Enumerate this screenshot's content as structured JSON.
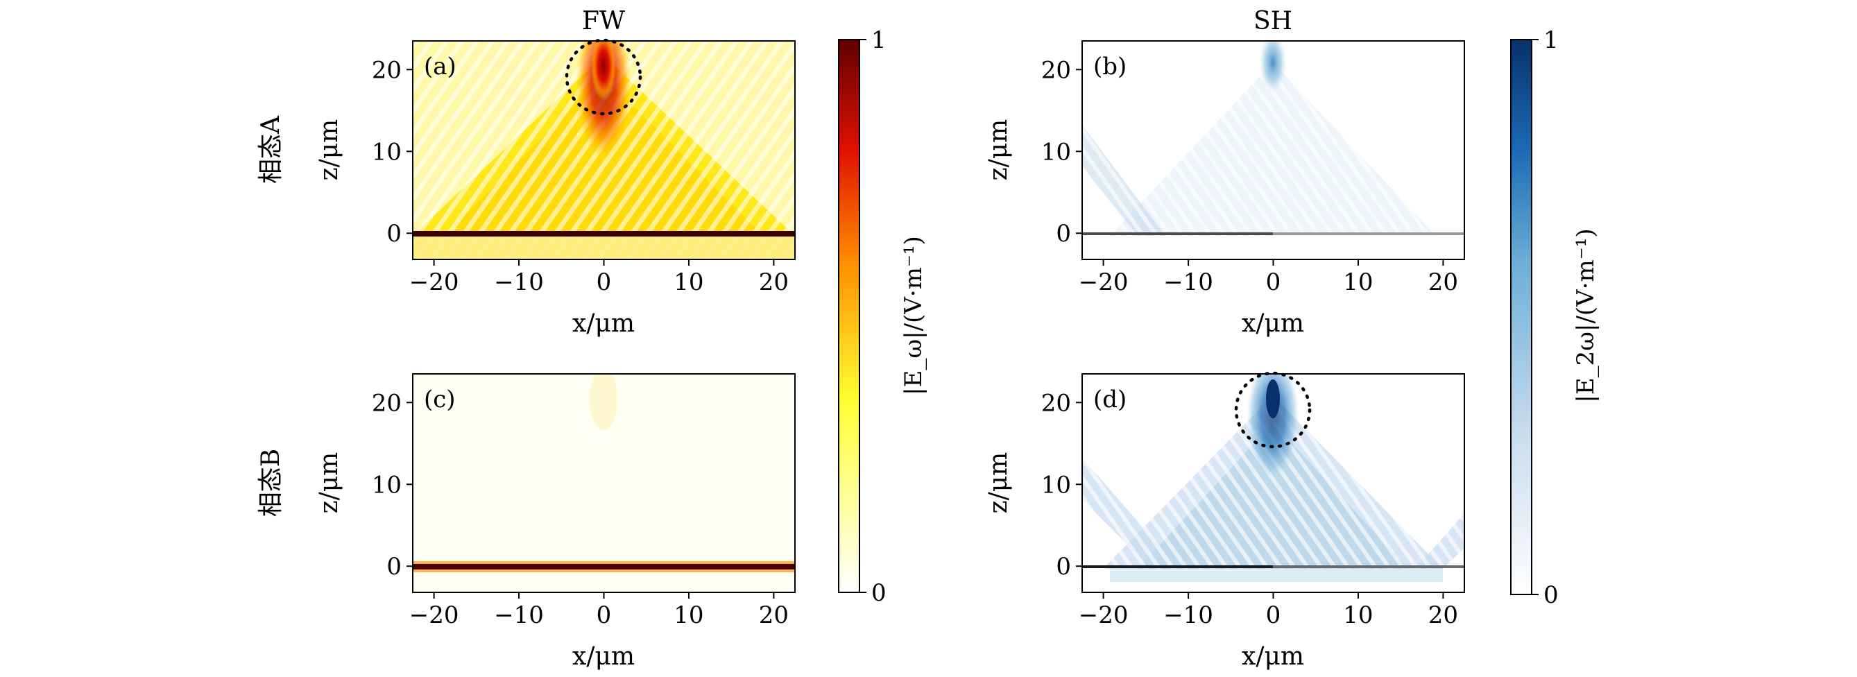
{
  "chart_data": [
    {
      "type": "heatmap",
      "panel": "(a)",
      "column_title": "FW",
      "row_label": "相态A",
      "xlabel": "x/μm",
      "ylabel": "z/μm",
      "xlim": [
        -22.5,
        22.5
      ],
      "ylim": [
        -3.2,
        23.5
      ],
      "xticks": [
        -20,
        -10,
        0,
        10,
        20
      ],
      "yticks": [
        0,
        10,
        20
      ],
      "colormap": "hot",
      "annotation": "dotted circle around focus near (0, 19.5)",
      "description": "Strong fundamental-wave field focused near x=0, z=19.5 with converging beams from the metasurface at z=0"
    },
    {
      "type": "heatmap",
      "panel": "(b)",
      "column_title": "SH",
      "row_label": "相态A",
      "xlabel": "x/μm",
      "ylabel": "z/μm",
      "xlim": [
        -22.5,
        22.5
      ],
      "ylim": [
        -3.2,
        23.5
      ],
      "xticks": [
        -20,
        -10,
        0,
        10,
        20
      ],
      "yticks": [
        0,
        10,
        20
      ],
      "colormap": "blues",
      "description": "Weak second-harmonic field with faint focus near x=0, z=20"
    },
    {
      "type": "heatmap",
      "panel": "(c)",
      "row_label": "相态B",
      "xlabel": "x/μm",
      "ylabel": "z/μm",
      "xlim": [
        -22.5,
        22.5
      ],
      "ylim": [
        -3.2,
        23.5
      ],
      "xticks": [
        -20,
        -10,
        0,
        10,
        20
      ],
      "yticks": [
        0,
        10,
        20
      ],
      "colormap": "hot",
      "description": "Fundamental wave nearly absent above the metasurface"
    },
    {
      "type": "heatmap",
      "panel": "(d)",
      "row_label": "相态B",
      "xlabel": "x/μm",
      "ylabel": "z/μm",
      "xlim": [
        -22.5,
        22.5
      ],
      "ylim": [
        -3.2,
        23.5
      ],
      "xticks": [
        -20,
        -10,
        0,
        10,
        20
      ],
      "yticks": [
        0,
        10,
        20
      ],
      "colormap": "blues",
      "annotation": "dotted circle around focus near (0, 19.5)",
      "description": "Strong second-harmonic field focused near x=0, z=19.5"
    }
  ],
  "colorbars": {
    "fw": {
      "label": "|E_ω|/(V·m⁻¹)",
      "min": "0",
      "max": "1",
      "colors": [
        "#ffffff",
        "#ffff30",
        "#ff8c00",
        "#e01000",
        "#600000"
      ]
    },
    "sh": {
      "label": "|E_2ω|/(V·m⁻¹)",
      "min": "0",
      "max": "1",
      "colors": [
        "#ffffff",
        "#c6dbef",
        "#6baed6",
        "#1a6bb5",
        "#08306b"
      ]
    }
  },
  "labels": {
    "title_fw": "FW",
    "title_sh": "SH",
    "row_a": "相态A",
    "row_b": "相态B",
    "xlabel": "x/μm",
    "ylabel": "z/μm",
    "panel_a": "(a)",
    "panel_b": "(b)",
    "panel_c": "(c)",
    "panel_d": "(d)"
  }
}
